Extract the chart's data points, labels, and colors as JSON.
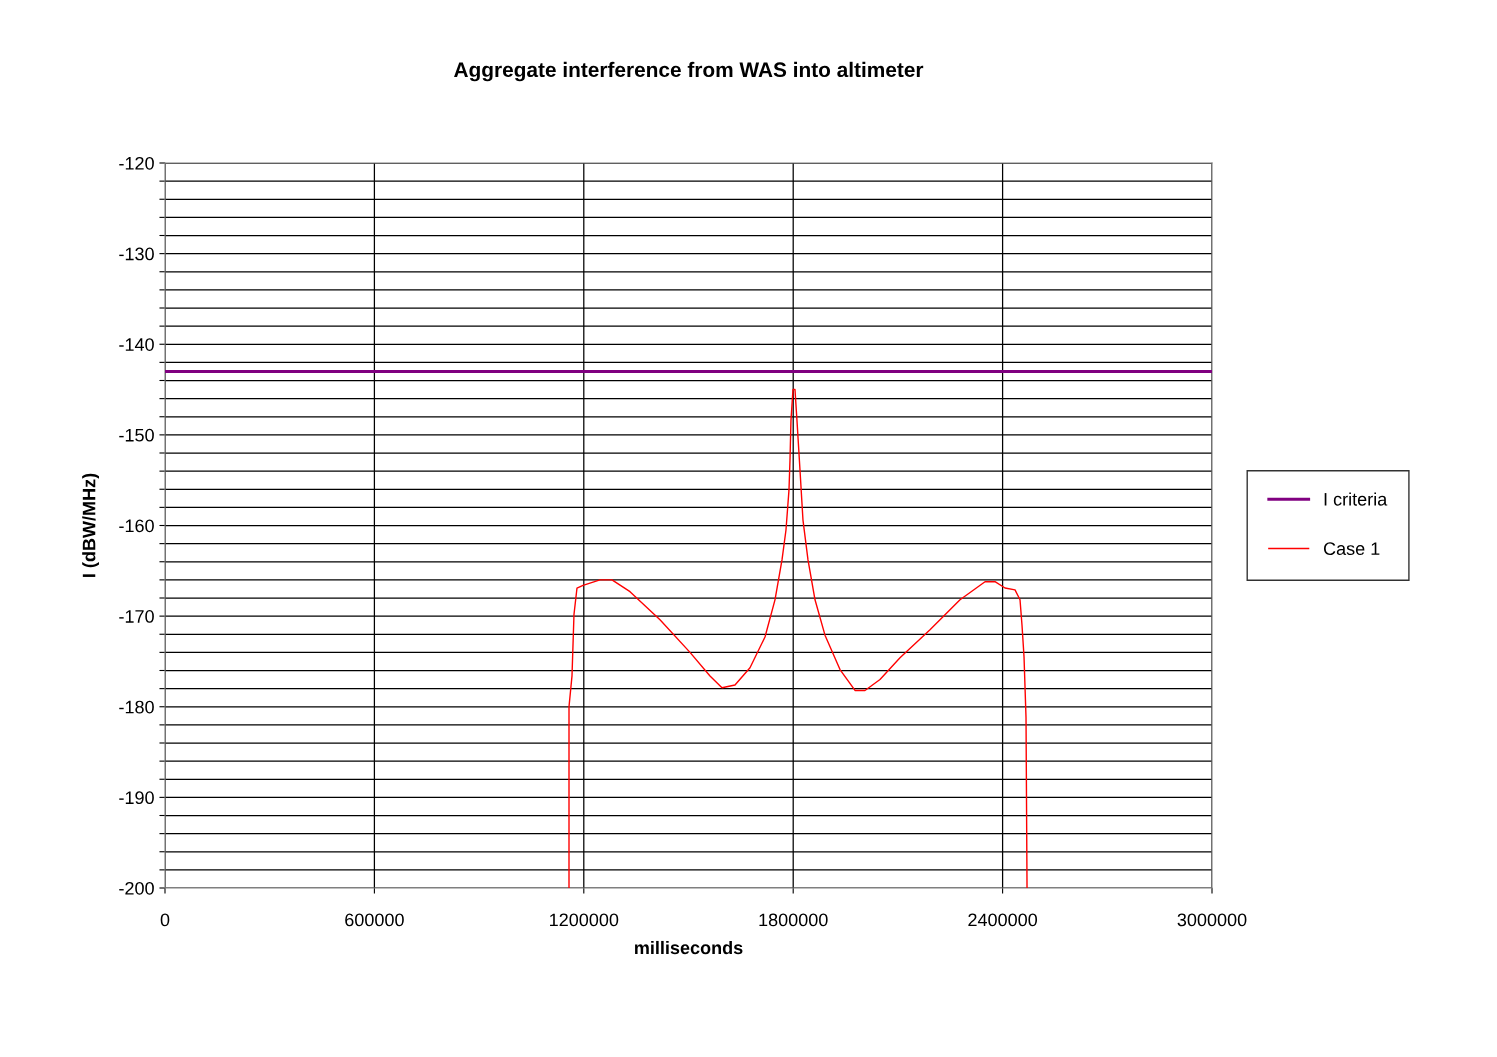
{
  "chart_data": {
    "type": "line",
    "title": "Aggregate interference from WAS into altimeter",
    "xlabel": "milliseconds",
    "ylabel": "I (dBW/MHz)",
    "xlim": [
      0,
      3000000
    ],
    "xticks": [
      0,
      600000,
      1200000,
      1800000,
      2400000,
      3000000
    ],
    "ylim": [
      -200,
      -120
    ],
    "yticks": [
      -200,
      {
        "value": -198,
        "label": null
      },
      {
        "value": -196,
        "label": null
      },
      {
        "value": -194,
        "label": null
      },
      {
        "value": -192,
        "label": null
      },
      -190,
      {
        "value": -188,
        "label": null
      },
      {
        "value": -186,
        "label": null
      },
      {
        "value": -184,
        "label": null
      },
      {
        "value": -182,
        "label": null
      },
      -180,
      {
        "value": -178,
        "label": null
      },
      {
        "value": -176,
        "label": null
      },
      {
        "value": -174,
        "label": null
      },
      {
        "value": -172,
        "label": null
      },
      -170,
      {
        "value": -168,
        "label": null
      },
      {
        "value": -166,
        "label": null
      },
      {
        "value": -164,
        "label": null
      },
      {
        "value": -162,
        "label": null
      },
      -160,
      {
        "value": -158,
        "label": null
      },
      {
        "value": -156,
        "label": null
      },
      {
        "value": -154,
        "label": null
      },
      {
        "value": -152,
        "label": null
      },
      -150,
      {
        "value": -148,
        "label": null
      },
      {
        "value": -146,
        "label": null
      },
      {
        "value": -144,
        "label": null
      },
      {
        "value": -142,
        "label": null
      },
      -140,
      {
        "value": -138,
        "label": null
      },
      {
        "value": -136,
        "label": null
      },
      {
        "value": -134,
        "label": null
      },
      {
        "value": -132,
        "label": null
      },
      -130,
      {
        "value": -128,
        "label": null
      },
      {
        "value": -126,
        "label": null
      },
      {
        "value": -124,
        "label": null
      },
      {
        "value": -122,
        "label": null
      },
      -120
    ],
    "grid": true,
    "legend": "right",
    "marker": "none",
    "line_style": "solid",
    "series": [
      {
        "name": "I criteria",
        "color": "#800080",
        "x": [
          0,
          3000000
        ],
        "values": [
          -143,
          -143
        ]
      },
      {
        "name": "Case 1",
        "color": "#ff0000",
        "x": [
          1157600,
          1157600,
          1166200,
          1171900,
          1180500,
          1197700,
          1246400,
          1280800,
          1332400,
          1418300,
          1504300,
          1561600,
          1596000,
          1633200,
          1676200,
          1719200,
          1747800,
          1767900,
          1779300,
          1787900,
          1790800,
          1793600,
          1799400,
          1805100,
          1810800,
          1819500,
          1828000,
          1842400,
          1862500,
          1891100,
          1934100,
          1977100,
          2005700,
          2048700,
          2106000,
          2192000,
          2278000,
          2349600,
          2378300,
          2406900,
          2435600,
          2449900,
          2455600,
          2461400,
          2467100,
          2470000
        ],
        "values": [
          -200,
          -180,
          -176.6,
          -169.8,
          -166.9,
          -166.6,
          -166,
          -166,
          -167.3,
          -170.4,
          -174,
          -176.6,
          -177.9,
          -177.6,
          -175.7,
          -172.3,
          -168.2,
          -163.8,
          -160.5,
          -156.1,
          -152.8,
          -148.4,
          -145,
          -145,
          -148.4,
          -153.9,
          -159.4,
          -163.8,
          -168.2,
          -172.1,
          -175.9,
          -178.2,
          -178.2,
          -177,
          -174.6,
          -171.5,
          -168.2,
          -166.2,
          -166.2,
          -166.9,
          -167.1,
          -168.2,
          -171,
          -174.5,
          -181.2,
          -200
        ]
      }
    ]
  }
}
